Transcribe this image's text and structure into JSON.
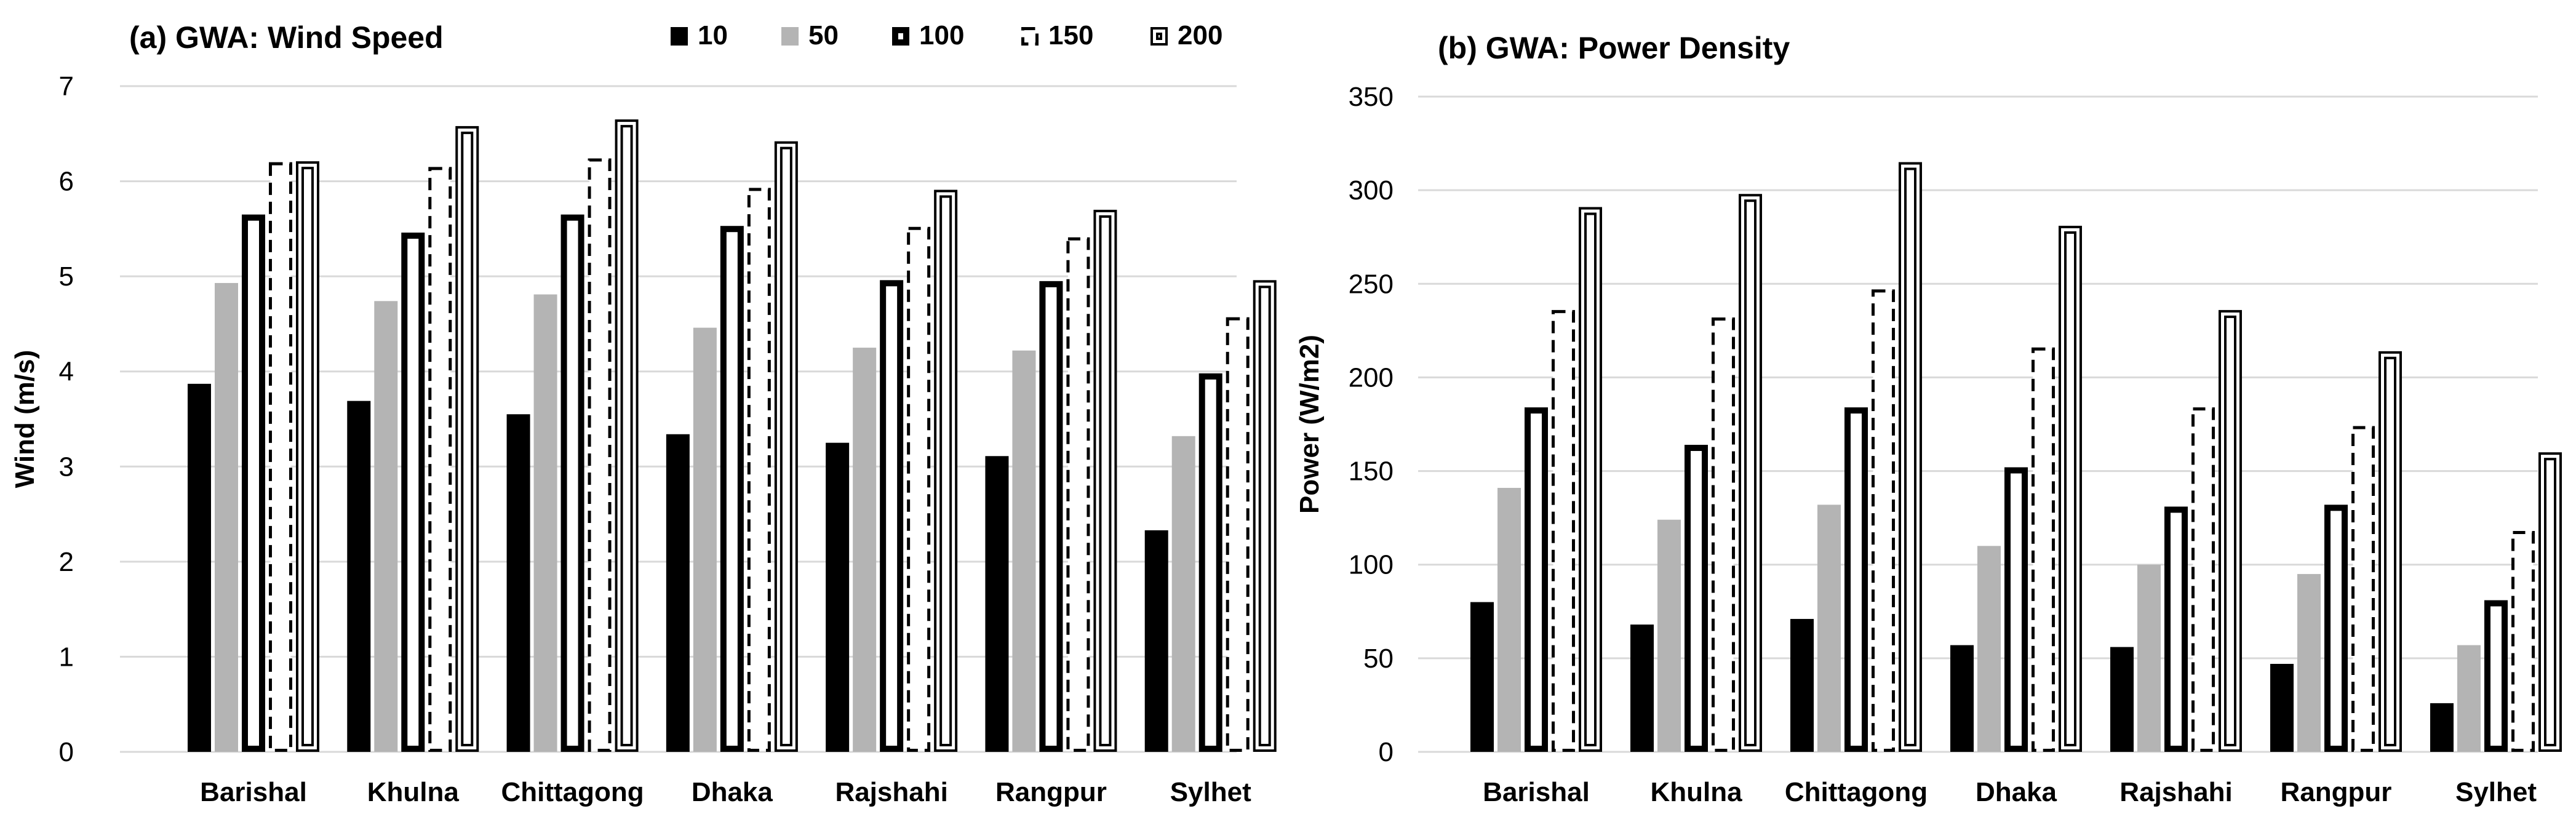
{
  "chart_data": [
    {
      "type": "bar",
      "title": "(a) GWA: Wind Speed",
      "xlabel": "",
      "ylabel": "Wind (m/s)",
      "ylim": [
        0,
        7
      ],
      "yticks": [
        0,
        1,
        2,
        3,
        4,
        5,
        6,
        7
      ],
      "grid": true,
      "legend_position": "top-right",
      "categories": [
        "Barishal",
        "Khulna",
        "Chittagong",
        "Dhaka",
        "Rajshahi",
        "Rangpur",
        "Sylhet"
      ],
      "series": [
        {
          "name": "10",
          "style": "solid-black",
          "values": [
            3.87,
            3.69,
            3.55,
            3.34,
            3.25,
            3.11,
            2.33
          ]
        },
        {
          "name": "50",
          "style": "solid-gray",
          "values": [
            4.93,
            4.74,
            4.81,
            4.46,
            4.25,
            4.22,
            3.32
          ]
        },
        {
          "name": "100",
          "style": "thick-outline",
          "values": [
            5.65,
            5.46,
            5.65,
            5.53,
            4.96,
            4.95,
            3.98
          ]
        },
        {
          "name": "150",
          "style": "dashed-outline",
          "values": [
            6.2,
            6.15,
            6.24,
            5.93,
            5.52,
            5.41,
            4.57
          ]
        },
        {
          "name": "200",
          "style": "double-outline",
          "values": [
            6.21,
            6.58,
            6.65,
            6.42,
            5.91,
            5.7,
            4.96
          ]
        }
      ]
    },
    {
      "type": "bar",
      "title": "(b) GWA: Power Density",
      "xlabel": "",
      "ylabel": "Power (W/m2)",
      "ylim": [
        0,
        350
      ],
      "yticks": [
        0,
        50,
        100,
        150,
        200,
        250,
        300,
        350
      ],
      "grid": true,
      "legend_position": "shared",
      "categories": [
        "Barishal",
        "Khulna",
        "Chittagong",
        "Dhaka",
        "Rajshahi",
        "Rangpur",
        "Sylhet"
      ],
      "series": [
        {
          "name": "10",
          "style": "solid-black",
          "values": [
            80,
            68,
            71,
            57,
            56,
            47,
            26
          ]
        },
        {
          "name": "50",
          "style": "solid-gray",
          "values": [
            141,
            124,
            132,
            110,
            100,
            95,
            57
          ]
        },
        {
          "name": "100",
          "style": "thick-outline",
          "values": [
            184,
            164,
            184,
            152,
            131,
            132,
            81
          ]
        },
        {
          "name": "150",
          "style": "dashed-outline",
          "values": [
            236,
            232,
            247,
            216,
            184,
            174,
            118
          ]
        },
        {
          "name": "200",
          "style": "double-outline",
          "values": [
            291,
            298,
            315,
            281,
            236,
            214,
            160
          ]
        }
      ]
    }
  ]
}
